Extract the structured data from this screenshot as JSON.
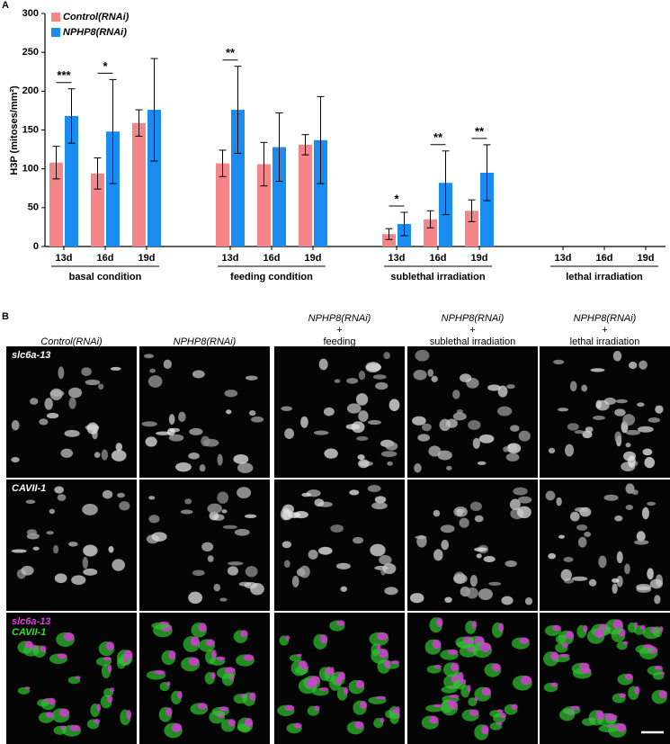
{
  "panel_labels": [
    "A",
    "B"
  ],
  "chart_data": {
    "type": "bar",
    "y_label": "H3P (mitoses/mm²)",
    "categories": [
      "13d",
      "16d",
      "19d",
      "13d",
      "16d",
      "19d",
      "13d",
      "16d",
      "19d",
      "13d",
      "16d",
      "19d"
    ],
    "groups": [
      "basal condition",
      "feeding condition",
      "sublethal irradiation",
      "lethal irradiation"
    ],
    "series": [
      {
        "name": "Control(RNAi)",
        "color": "#f4868a",
        "values": [
          108,
          94,
          159,
          107,
          106,
          131,
          16,
          35,
          46,
          0,
          0,
          0
        ],
        "errors": [
          21,
          20,
          17,
          17,
          28,
          13,
          7,
          11,
          14,
          null,
          null,
          null
        ]
      },
      {
        "name": "NPHP8(RNAi)",
        "color": "#1a8cf0",
        "values": [
          168,
          148,
          176,
          176,
          128,
          137,
          29,
          82,
          95,
          0,
          0,
          0
        ],
        "errors": [
          35,
          67,
          66,
          56,
          44,
          56,
          15,
          41,
          36,
          null,
          null,
          null
        ]
      }
    ],
    "significance": [
      "***",
      "*",
      null,
      "**",
      null,
      null,
      "*",
      "**",
      "**",
      null,
      null,
      null
    ],
    "ylim": [
      0,
      300
    ],
    "yticks": [
      0,
      50,
      100,
      150,
      200,
      250,
      300
    ],
    "legend": "upper left"
  },
  "image_grid": {
    "column_headers": [
      [
        "Control(RNAi)"
      ],
      [
        "NPHP8(RNAi)"
      ],
      [
        "NPHP8(RNAi)",
        "+",
        "feeding"
      ],
      [
        "NPHP8(RNAi)",
        "+",
        "sublethal irradiation"
      ],
      [
        "NPHP8(RNAi)",
        "+",
        "lethal irradiation"
      ]
    ],
    "row_labels": [
      [
        {
          "text": "slc6a-13",
          "color": "#ffffff"
        }
      ],
      [
        {
          "text": "CAVII-1",
          "color": "#ffffff"
        }
      ],
      [
        {
          "text": "slc6a-13",
          "color": "#e040e0"
        },
        {
          "text": "CAVII-1",
          "color": "#30e030"
        }
      ]
    ]
  }
}
